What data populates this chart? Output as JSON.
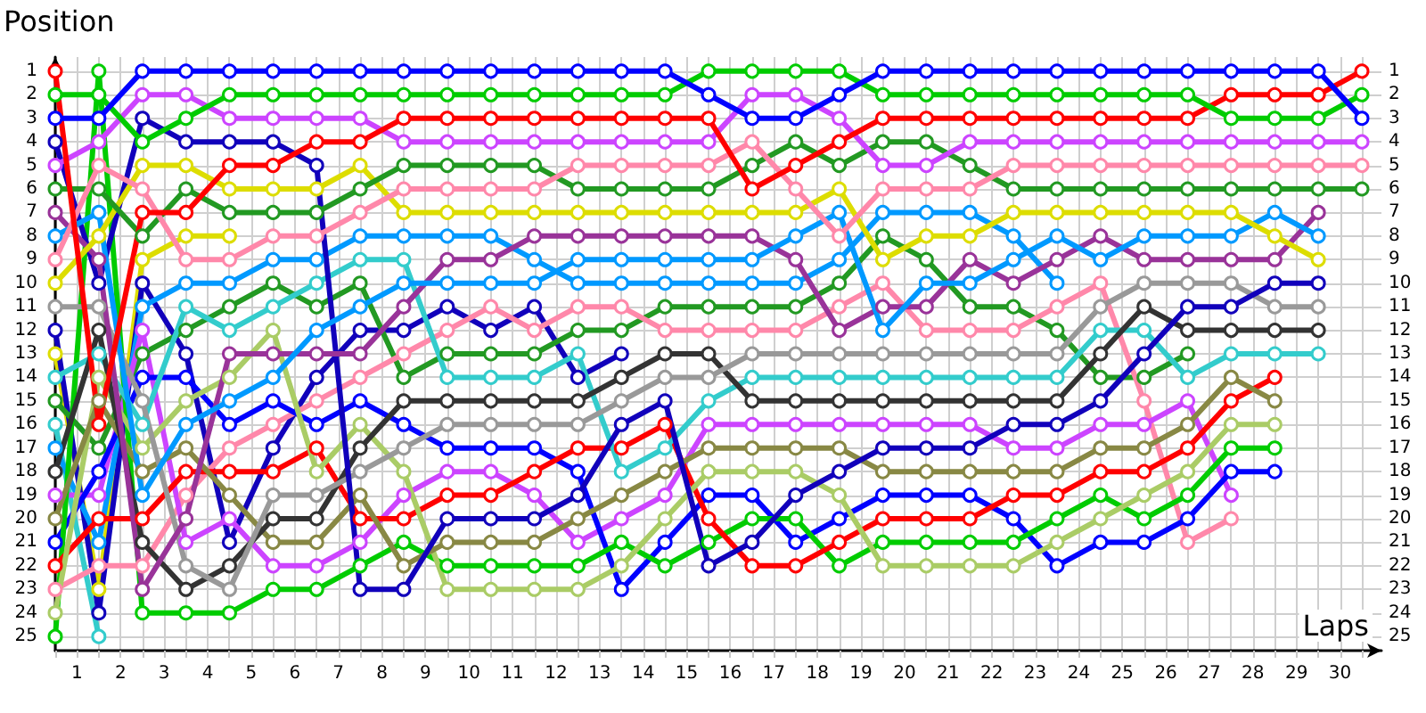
{
  "chart_data": {
    "type": "line",
    "xlabel": "Laps",
    "ylabel": "Position",
    "marker": "circle",
    "line_style": "solid",
    "grid": true,
    "x": [
      0,
      1,
      2,
      3,
      4,
      5,
      6,
      7,
      8,
      9,
      10,
      11,
      12,
      13,
      14,
      15,
      16,
      17,
      18,
      19,
      20,
      21,
      22,
      23,
      24,
      25,
      26,
      27,
      28,
      29,
      30
    ],
    "xlim": [
      0,
      30.45
    ],
    "xticks": [
      {
        "value": 0,
        "label": null
      },
      {
        "value": 0.5,
        "label": "1"
      },
      {
        "value": 1,
        "label": null
      },
      {
        "value": 1.5,
        "label": "2"
      },
      {
        "value": 2,
        "label": null
      },
      {
        "value": 2.5,
        "label": "3"
      },
      {
        "value": 3,
        "label": null
      },
      {
        "value": 3.5,
        "label": "4"
      },
      {
        "value": 4,
        "label": null
      },
      {
        "value": 4.5,
        "label": "5"
      },
      {
        "value": 5,
        "label": null
      },
      {
        "value": 5.5,
        "label": "6"
      },
      {
        "value": 6,
        "label": null
      },
      {
        "value": 6.5,
        "label": "7"
      },
      {
        "value": 7,
        "label": null
      },
      {
        "value": 7.5,
        "label": "8"
      },
      {
        "value": 8,
        "label": null
      },
      {
        "value": 8.5,
        "label": "9"
      },
      {
        "value": 9,
        "label": null
      },
      {
        "value": 9.5,
        "label": "10"
      },
      {
        "value": 10,
        "label": null
      },
      {
        "value": 10.5,
        "label": "11"
      },
      {
        "value": 11,
        "label": null
      },
      {
        "value": 11.5,
        "label": "12"
      },
      {
        "value": 12,
        "label": null
      },
      {
        "value": 12.5,
        "label": "13"
      },
      {
        "value": 13,
        "label": null
      },
      {
        "value": 13.5,
        "label": "14"
      },
      {
        "value": 14,
        "label": null
      },
      {
        "value": 14.5,
        "label": "15"
      },
      {
        "value": 15,
        "label": null
      },
      {
        "value": 15.5,
        "label": "16"
      },
      {
        "value": 16,
        "label": null
      },
      {
        "value": 16.5,
        "label": "17"
      },
      {
        "value": 17,
        "label": null
      },
      {
        "value": 17.5,
        "label": "18"
      },
      {
        "value": 18,
        "label": null
      },
      {
        "value": 18.5,
        "label": "19"
      },
      {
        "value": 19,
        "label": null
      },
      {
        "value": 19.5,
        "label": "20"
      },
      {
        "value": 20,
        "label": null
      },
      {
        "value": 20.5,
        "label": "21"
      },
      {
        "value": 21,
        "label": null
      },
      {
        "value": 21.5,
        "label": "22"
      },
      {
        "value": 22,
        "label": null
      },
      {
        "value": 22.5,
        "label": "23"
      },
      {
        "value": 23,
        "label": null
      },
      {
        "value": 23.5,
        "label": "24"
      },
      {
        "value": 24,
        "label": null
      },
      {
        "value": 24.5,
        "label": "25"
      },
      {
        "value": 25,
        "label": null
      },
      {
        "value": 25.5,
        "label": "26"
      },
      {
        "value": 26,
        "label": null
      },
      {
        "value": 26.5,
        "label": "27"
      },
      {
        "value": 27,
        "label": null
      },
      {
        "value": 27.5,
        "label": "28"
      },
      {
        "value": 28,
        "label": null
      },
      {
        "value": 28.5,
        "label": "29"
      },
      {
        "value": 29,
        "label": null
      },
      {
        "value": 29.5,
        "label": "30"
      },
      {
        "value": 30,
        "label": null
      }
    ],
    "ylim": [
      25.6,
      0.4
    ],
    "yticks": [
      1,
      2,
      3,
      4,
      5,
      6,
      7,
      8,
      9,
      10,
      11,
      12,
      13,
      14,
      15,
      16,
      17,
      18,
      19,
      20,
      21,
      22,
      23,
      24,
      25
    ],
    "y2lim": [
      25.6,
      0.4
    ],
    "y2ticks": [
      1,
      2,
      3,
      4,
      5,
      6,
      7,
      8,
      9,
      10,
      11,
      12,
      13,
      14,
      15,
      16,
      17,
      18,
      19,
      20,
      21,
      22,
      23,
      24,
      25
    ],
    "series": [
      {
        "color": "#33cccc",
        "values": [
          16,
          25,
          null,
          null,
          null,
          null,
          null,
          null,
          null,
          null,
          null,
          null,
          null,
          null,
          null,
          null,
          null,
          null,
          null,
          null,
          null,
          null,
          null,
          null,
          null,
          null,
          null,
          null,
          null,
          null,
          null
        ]
      },
      {
        "color": "#dddd00",
        "values": [
          13,
          23,
          9,
          8,
          8,
          null,
          null,
          null,
          null,
          null,
          null,
          null,
          null,
          null,
          null,
          null,
          null,
          null,
          null,
          null,
          null,
          null,
          null,
          null,
          null,
          null,
          null,
          null,
          null,
          null,
          null
        ]
      },
      {
        "color": "#1100bb",
        "values": [
          12,
          24,
          10,
          13,
          21,
          17,
          14,
          12,
          12,
          11,
          12,
          11,
          14,
          13,
          null,
          null,
          null,
          null,
          null,
          null,
          null,
          null,
          null,
          null,
          null,
          null,
          null,
          null,
          null,
          null,
          null
        ]
      },
      {
        "color": "#0099ff",
        "values": [
          17,
          21,
          11,
          10,
          10,
          9,
          9,
          8,
          8,
          8,
          8,
          9,
          10,
          10,
          10,
          10,
          10,
          10,
          9,
          7,
          7,
          7,
          8,
          10,
          null,
          null,
          null,
          null,
          null,
          null,
          null
        ]
      },
      {
        "color": "#229922",
        "values": [
          15,
          17,
          13,
          12,
          11,
          10,
          11,
          10,
          14,
          13,
          13,
          13,
          12,
          12,
          11,
          11,
          11,
          11,
          10,
          8,
          9,
          11,
          11,
          12,
          14,
          14,
          13,
          null,
          null,
          null,
          null
        ]
      },
      {
        "color": "#ff88aa",
        "values": [
          23,
          22,
          22,
          19,
          17,
          16,
          15,
          14,
          13,
          12,
          11,
          12,
          11,
          11,
          12,
          12,
          12,
          12,
          11,
          10,
          12,
          12,
          12,
          11,
          10,
          15,
          21,
          20,
          null,
          null,
          null
        ]
      },
      {
        "color": "#cc44ff",
        "values": [
          19,
          19,
          12,
          21,
          20,
          22,
          22,
          21,
          19,
          18,
          18,
          19,
          21,
          20,
          19,
          16,
          16,
          16,
          16,
          16,
          16,
          16,
          17,
          17,
          16,
          16,
          15,
          19,
          null,
          null,
          null
        ]
      },
      {
        "color": "#0000ff",
        "values": [
          21,
          18,
          14,
          14,
          16,
          15,
          16,
          15,
          16,
          17,
          17,
          17,
          18,
          23,
          21,
          19,
          19,
          21,
          20,
          19,
          19,
          19,
          20,
          22,
          21,
          21,
          20,
          18,
          18,
          null,
          null
        ]
      },
      {
        "color": "#00cc00",
        "values": [
          25,
          1,
          24,
          24,
          24,
          23,
          23,
          22,
          21,
          22,
          22,
          22,
          22,
          21,
          22,
          21,
          20,
          20,
          22,
          21,
          21,
          21,
          21,
          20,
          19,
          20,
          19,
          17,
          17,
          null,
          null
        ]
      },
      {
        "color": "#ff0000",
        "values": [
          22,
          20,
          20,
          18,
          18,
          18,
          17,
          20,
          20,
          19,
          19,
          18,
          17,
          17,
          16,
          20,
          22,
          22,
          21,
          20,
          20,
          20,
          19,
          19,
          18,
          18,
          17,
          15,
          14,
          null,
          null
        ]
      },
      {
        "color": "#aacc66",
        "values": [
          24,
          14,
          17,
          15,
          14,
          12,
          18,
          16,
          18,
          23,
          23,
          23,
          23,
          22,
          20,
          18,
          18,
          18,
          19,
          22,
          22,
          22,
          22,
          21,
          20,
          19,
          18,
          16,
          16,
          null,
          null
        ]
      },
      {
        "color": "#888844",
        "values": [
          20,
          15,
          18,
          17,
          19,
          21,
          21,
          19,
          22,
          21,
          21,
          21,
          20,
          19,
          18,
          17,
          17,
          17,
          17,
          18,
          18,
          18,
          18,
          18,
          17,
          17,
          16,
          14,
          15,
          null,
          null
        ]
      },
      {
        "color": "#33cccc",
        "values": [
          14,
          13,
          16,
          11,
          12,
          11,
          10,
          9,
          9,
          14,
          14,
          14,
          13,
          18,
          17,
          15,
          14,
          14,
          14,
          14,
          14,
          14,
          14,
          14,
          12,
          12,
          14,
          13,
          13,
          13,
          null
        ]
      },
      {
        "color": "#333333",
        "values": [
          18,
          12,
          21,
          23,
          22,
          20,
          20,
          17,
          15,
          15,
          15,
          15,
          15,
          14,
          13,
          13,
          15,
          15,
          15,
          15,
          15,
          15,
          15,
          15,
          13,
          11,
          12,
          12,
          12,
          12,
          null
        ]
      },
      {
        "color": "#999999",
        "values": [
          11,
          11,
          15,
          22,
          23,
          19,
          19,
          18,
          17,
          16,
          16,
          16,
          16,
          15,
          14,
          14,
          13,
          13,
          13,
          13,
          13,
          13,
          13,
          13,
          11,
          10,
          10,
          10,
          11,
          11,
          null
        ]
      },
      {
        "color": "#1100bb",
        "values": [
          4,
          10,
          3,
          4,
          4,
          4,
          5,
          23,
          23,
          20,
          20,
          20,
          19,
          16,
          15,
          22,
          21,
          19,
          18,
          17,
          17,
          17,
          16,
          16,
          15,
          13,
          11,
          11,
          10,
          10,
          null
        ]
      },
      {
        "color": "#993399",
        "values": [
          7,
          9,
          23,
          20,
          13,
          13,
          13,
          13,
          11,
          9,
          9,
          8,
          8,
          8,
          8,
          8,
          8,
          9,
          12,
          11,
          11,
          9,
          10,
          9,
          8,
          9,
          9,
          9,
          9,
          7,
          null
        ]
      },
      {
        "color": "#0099ff",
        "values": [
          8,
          7,
          19,
          16,
          15,
          14,
          12,
          11,
          10,
          10,
          10,
          10,
          9,
          9,
          9,
          9,
          9,
          8,
          7,
          12,
          10,
          10,
          9,
          8,
          9,
          8,
          8,
          8,
          7,
          8,
          null
        ]
      },
      {
        "color": "#dddd00",
        "values": [
          10,
          8,
          5,
          5,
          6,
          6,
          6,
          5,
          7,
          7,
          7,
          7,
          7,
          7,
          7,
          7,
          7,
          7,
          6,
          9,
          8,
          8,
          7,
          7,
          7,
          7,
          7,
          7,
          8,
          9,
          null
        ]
      },
      {
        "color": "#229922",
        "values": [
          6,
          6,
          8,
          6,
          7,
          7,
          7,
          6,
          5,
          5,
          5,
          5,
          6,
          6,
          6,
          6,
          5,
          4,
          5,
          4,
          4,
          5,
          6,
          6,
          6,
          6,
          6,
          6,
          6,
          6,
          6
        ]
      },
      {
        "color": "#ff88aa",
        "values": [
          9,
          5,
          6,
          9,
          9,
          8,
          8,
          7,
          6,
          6,
          6,
          6,
          5,
          5,
          5,
          5,
          4,
          6,
          8,
          6,
          6,
          6,
          5,
          5,
          5,
          5,
          5,
          5,
          5,
          5,
          5
        ]
      },
      {
        "color": "#cc44ff",
        "values": [
          5,
          4,
          2,
          2,
          3,
          3,
          3,
          3,
          4,
          4,
          4,
          4,
          4,
          4,
          4,
          4,
          2,
          2,
          3,
          5,
          5,
          4,
          4,
          4,
          4,
          4,
          4,
          4,
          4,
          4,
          4
        ]
      },
      {
        "color": "#ff0000",
        "values": [
          1,
          16,
          7,
          7,
          5,
          5,
          4,
          4,
          3,
          3,
          3,
          3,
          3,
          3,
          3,
          3,
          6,
          5,
          4,
          3,
          3,
          3,
          3,
          3,
          3,
          3,
          3,
          2,
          2,
          2,
          1
        ]
      },
      {
        "color": "#00cc00",
        "values": [
          2,
          2,
          4,
          3,
          2,
          2,
          2,
          2,
          2,
          2,
          2,
          2,
          2,
          2,
          2,
          1,
          1,
          1,
          1,
          2,
          2,
          2,
          2,
          2,
          2,
          2,
          2,
          3,
          3,
          3,
          2
        ]
      },
      {
        "color": "#0000ff",
        "values": [
          3,
          3,
          1,
          1,
          1,
          1,
          1,
          1,
          1,
          1,
          1,
          1,
          1,
          1,
          1,
          2,
          3,
          3,
          2,
          1,
          1,
          1,
          1,
          1,
          1,
          1,
          1,
          1,
          1,
          1,
          3
        ]
      }
    ]
  }
}
